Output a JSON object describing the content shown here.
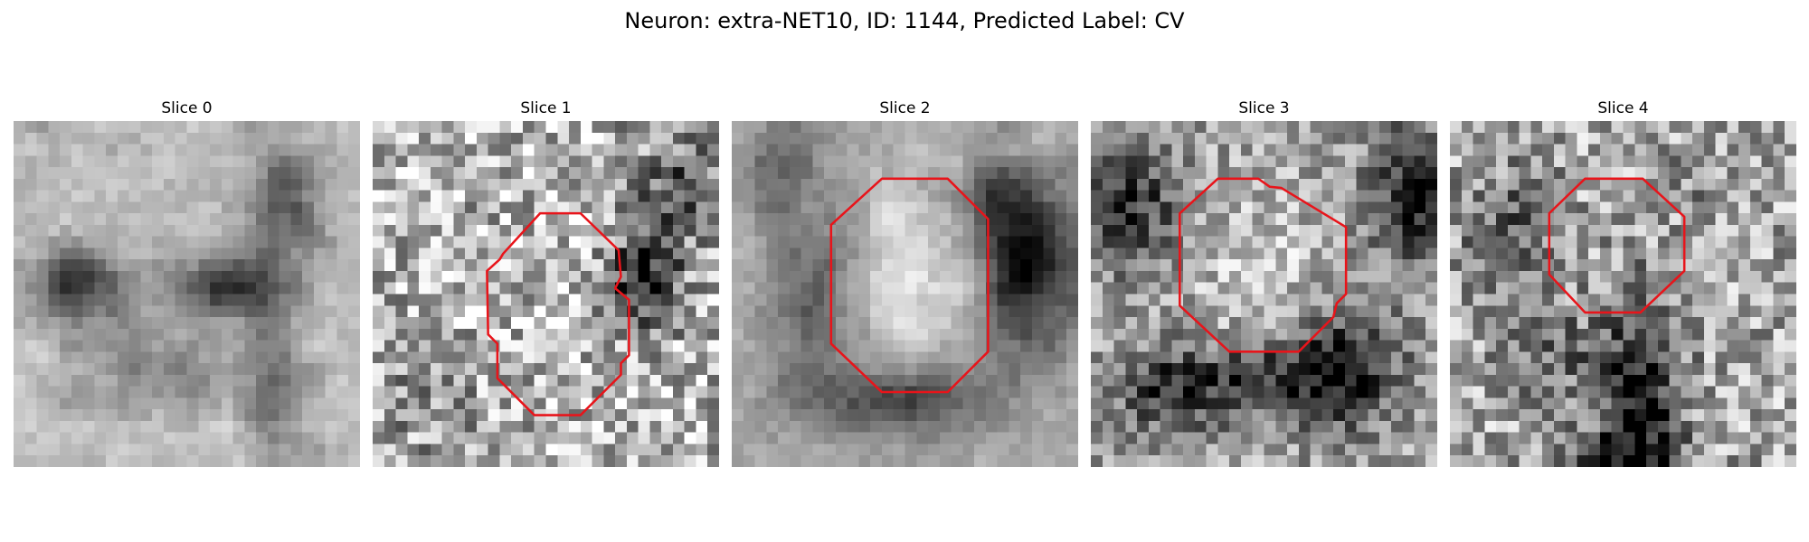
{
  "figure": {
    "title": "Neuron: extra-NET10, ID: 1144, Predicted Label: CV"
  },
  "panels": [
    {
      "title": "Slice 0",
      "has_contour": false
    },
    {
      "title": "Slice 1",
      "has_contour": true
    },
    {
      "title": "Slice 2",
      "has_contour": true
    },
    {
      "title": "Slice 3",
      "has_contour": true
    },
    {
      "title": "Slice 4",
      "has_contour": true
    }
  ],
  "colors": {
    "contour": "#e8141a",
    "background": "#ffffff"
  }
}
